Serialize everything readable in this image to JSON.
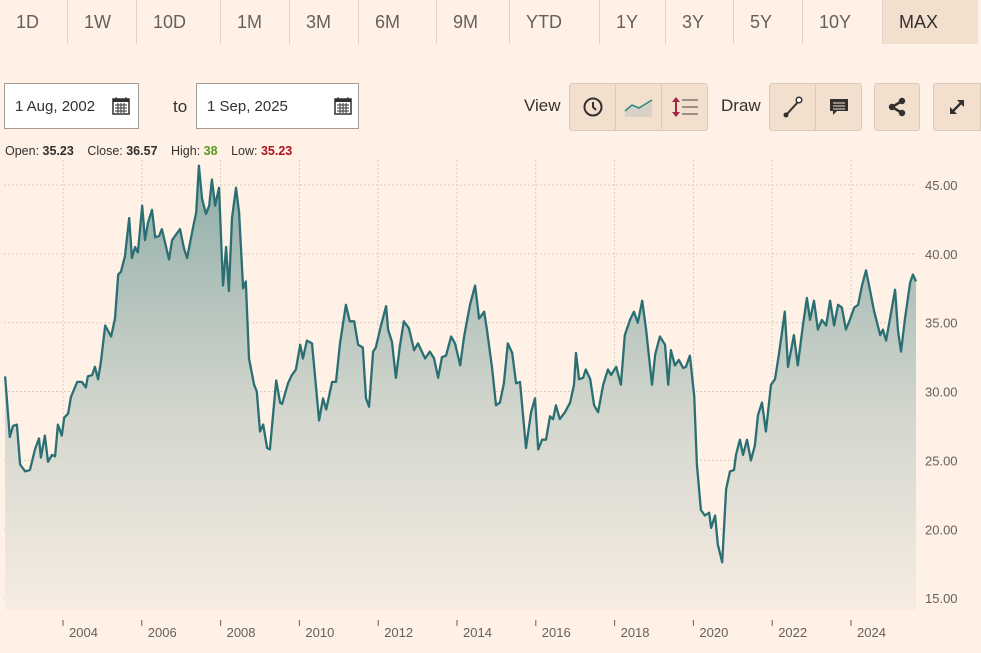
{
  "range_tabs": [
    "1D",
    "1W",
    "10D",
    "1M",
    "3M",
    "6M",
    "9M",
    "YTD",
    "1Y",
    "3Y",
    "5Y",
    "10Y",
    "MAX"
  ],
  "active_tab": "MAX",
  "date_from": "1 Aug, 2002",
  "date_to": "1 Sep, 2025",
  "to_label": "to",
  "view_label": "View",
  "draw_label": "Draw",
  "stats": {
    "open_label": "Open:",
    "open": "35.23",
    "close_label": "Close:",
    "close": "36.57",
    "high_label": "High:",
    "high": "38",
    "low_label": "Low:",
    "low": "35.23"
  },
  "colors": {
    "line": "#2a6f74",
    "high": "#5a9a1e",
    "low": "#b0141c",
    "accent_down": "#a6244a"
  },
  "chart_data": {
    "type": "area",
    "title": "",
    "xlabel": "",
    "ylabel": "",
    "xlim": [
      2002.53,
      2025.65
    ],
    "ylim": [
      13.5,
      47
    ],
    "grid": true,
    "x_ticks": [
      "2004",
      "2006",
      "2008",
      "2010",
      "2012",
      "2014",
      "2016",
      "2018",
      "2020",
      "2022",
      "2024"
    ],
    "y_ticks": [
      "15.00",
      "20.00",
      "25.00",
      "30.00",
      "35.00",
      "40.00",
      "45.00"
    ],
    "x": [
      2002.53,
      2002.65,
      2002.73,
      2002.83,
      2002.91,
      2003.04,
      2003.16,
      2003.29,
      2003.39,
      2003.44,
      2003.54,
      2003.62,
      2003.72,
      2003.8,
      2003.87,
      2003.97,
      2004.03,
      2004.13,
      2004.2,
      2004.36,
      2004.48,
      2004.58,
      2004.63,
      2004.74,
      2004.81,
      2004.89,
      2004.96,
      2005.07,
      2005.22,
      2005.32,
      2005.4,
      2005.47,
      2005.57,
      2005.68,
      2005.75,
      2005.83,
      2005.9,
      2006.01,
      2006.08,
      2006.16,
      2006.26,
      2006.34,
      2006.44,
      2006.51,
      2006.69,
      2006.77,
      2006.97,
      2007.07,
      2007.15,
      2007.3,
      2007.38,
      2007.45,
      2007.53,
      2007.63,
      2007.71,
      2007.78,
      2007.86,
      2007.96,
      2008.06,
      2008.14,
      2008.21,
      2008.29,
      2008.39,
      2008.47,
      2008.57,
      2008.64,
      2008.72,
      2008.85,
      2008.92,
      2009.0,
      2009.08,
      2009.18,
      2009.25,
      2009.41,
      2009.51,
      2009.56,
      2009.71,
      2009.81,
      2009.91,
      2010.02,
      2010.09,
      2010.19,
      2010.32,
      2010.5,
      2010.6,
      2010.68,
      2010.83,
      2010.93,
      2011.03,
      2011.18,
      2011.28,
      2011.39,
      2011.49,
      2011.61,
      2011.69,
      2011.77,
      2011.87,
      2011.94,
      2012.07,
      2012.2,
      2012.25,
      2012.35,
      2012.45,
      2012.55,
      2012.65,
      2012.78,
      2012.91,
      2013.01,
      2013.19,
      2013.31,
      2013.42,
      2013.52,
      2013.62,
      2013.72,
      2013.85,
      2013.95,
      2014.08,
      2014.18,
      2014.33,
      2014.46,
      2014.56,
      2014.69,
      2014.76,
      2014.89,
      2014.99,
      2015.09,
      2015.19,
      2015.29,
      2015.4,
      2015.5,
      2015.6,
      2015.75,
      2015.88,
      2015.98,
      2016.06,
      2016.16,
      2016.26,
      2016.36,
      2016.44,
      2016.51,
      2016.61,
      2016.74,
      2016.87,
      2016.97,
      2017.02,
      2017.1,
      2017.2,
      2017.27,
      2017.38,
      2017.48,
      2017.58,
      2017.71,
      2017.83,
      2017.91,
      2018.04,
      2018.16,
      2018.26,
      2018.39,
      2018.49,
      2018.59,
      2018.7,
      2018.8,
      2018.95,
      2019.03,
      2019.15,
      2019.28,
      2019.36,
      2019.43,
      2019.53,
      2019.63,
      2019.74,
      2019.81,
      2019.91,
      2020.02,
      2020.09,
      2020.19,
      2020.29,
      2020.4,
      2020.45,
      2020.55,
      2020.62,
      2020.73,
      2020.83,
      2020.93,
      2021.03,
      2021.08,
      2021.18,
      2021.26,
      2021.36,
      2021.46,
      2021.56,
      2021.64,
      2021.74,
      2021.84,
      2021.97,
      2022.07,
      2022.17,
      2022.32,
      2022.4,
      2022.55,
      2022.65,
      2022.78,
      2022.88,
      2022.96,
      2023.06,
      2023.16,
      2023.26,
      2023.37,
      2023.47,
      2023.57,
      2023.67,
      2023.77,
      2023.87,
      2023.97,
      2024.08,
      2024.18,
      2024.28,
      2024.38,
      2024.48,
      2024.58,
      2024.74,
      2024.81,
      2024.89,
      2024.99,
      2025.12,
      2025.19,
      2025.27,
      2025.37,
      2025.5,
      2025.57,
      2025.65
    ],
    "y": [
      31.1,
      26.7,
      27.5,
      27.6,
      24.7,
      24.2,
      24.3,
      25.8,
      26.6,
      25.2,
      26.8,
      24.9,
      25.4,
      25.3,
      27.6,
      26.8,
      28.1,
      28.4,
      29.6,
      30.7,
      30.7,
      30.3,
      31.1,
      31.2,
      31.8,
      30.9,
      32.1,
      34.8,
      34.0,
      35.3,
      38.5,
      38.7,
      39.8,
      42.6,
      39.7,
      40.5,
      40.1,
      43.5,
      41.0,
      42.3,
      43.2,
      41.2,
      41.3,
      41.8,
      39.6,
      41.0,
      41.8,
      40.4,
      39.7,
      41.9,
      43.0,
      46.4,
      44.0,
      42.9,
      43.5,
      45.4,
      43.5,
      44.8,
      37.7,
      40.5,
      37.3,
      42.6,
      44.8,
      43.0,
      37.5,
      38.0,
      32.4,
      30.5,
      30.0,
      27.1,
      27.6,
      25.9,
      25.8,
      30.8,
      29.2,
      29.1,
      30.6,
      31.2,
      31.6,
      33.4,
      32.4,
      33.7,
      33.5,
      27.9,
      29.5,
      28.7,
      30.7,
      30.7,
      33.5,
      36.3,
      35.1,
      35.1,
      33.4,
      33.2,
      29.5,
      28.9,
      32.9,
      33.2,
      34.8,
      36.2,
      34.5,
      33.6,
      31.0,
      33.3,
      35.1,
      34.6,
      33.0,
      33.5,
      32.4,
      32.9,
      32.4,
      31.0,
      32.5,
      32.6,
      34.0,
      33.5,
      31.9,
      34.0,
      36.3,
      37.7,
      35.3,
      35.8,
      34.5,
      31.7,
      29.0,
      29.2,
      30.6,
      33.5,
      32.8,
      30.6,
      30.7,
      25.9,
      28.5,
      29.5,
      25.8,
      26.5,
      26.5,
      28.2,
      28.0,
      29.0,
      28.0,
      28.5,
      29.2,
      30.5,
      32.8,
      30.9,
      31.0,
      31.6,
      30.9,
      29.0,
      28.5,
      30.5,
      31.6,
      31.2,
      31.8,
      30.5,
      34.1,
      35.2,
      35.8,
      35.0,
      36.6,
      34.5,
      30.5,
      32.7,
      34.0,
      33.4,
      30.5,
      33.0,
      31.9,
      32.3,
      31.7,
      31.8,
      32.6,
      29.7,
      24.7,
      21.4,
      21.0,
      21.2,
      20.1,
      21.0,
      18.9,
      17.6,
      22.9,
      24.2,
      24.3,
      25.4,
      26.5,
      25.4,
      26.5,
      25.0,
      26.1,
      28.3,
      29.2,
      27.1,
      30.5,
      30.9,
      32.7,
      35.8,
      31.8,
      34.1,
      31.9,
      34.8,
      36.8,
      35.2,
      36.6,
      34.5,
      35.2,
      34.8,
      36.6,
      34.8,
      36.3,
      36.1,
      34.5,
      35.2,
      36.1,
      36.3,
      37.7,
      38.8,
      37.4,
      35.9,
      34.1,
      34.5,
      33.7,
      35.3,
      37.4,
      34.5,
      32.9,
      35.3,
      37.9,
      38.5,
      38.0
    ]
  }
}
